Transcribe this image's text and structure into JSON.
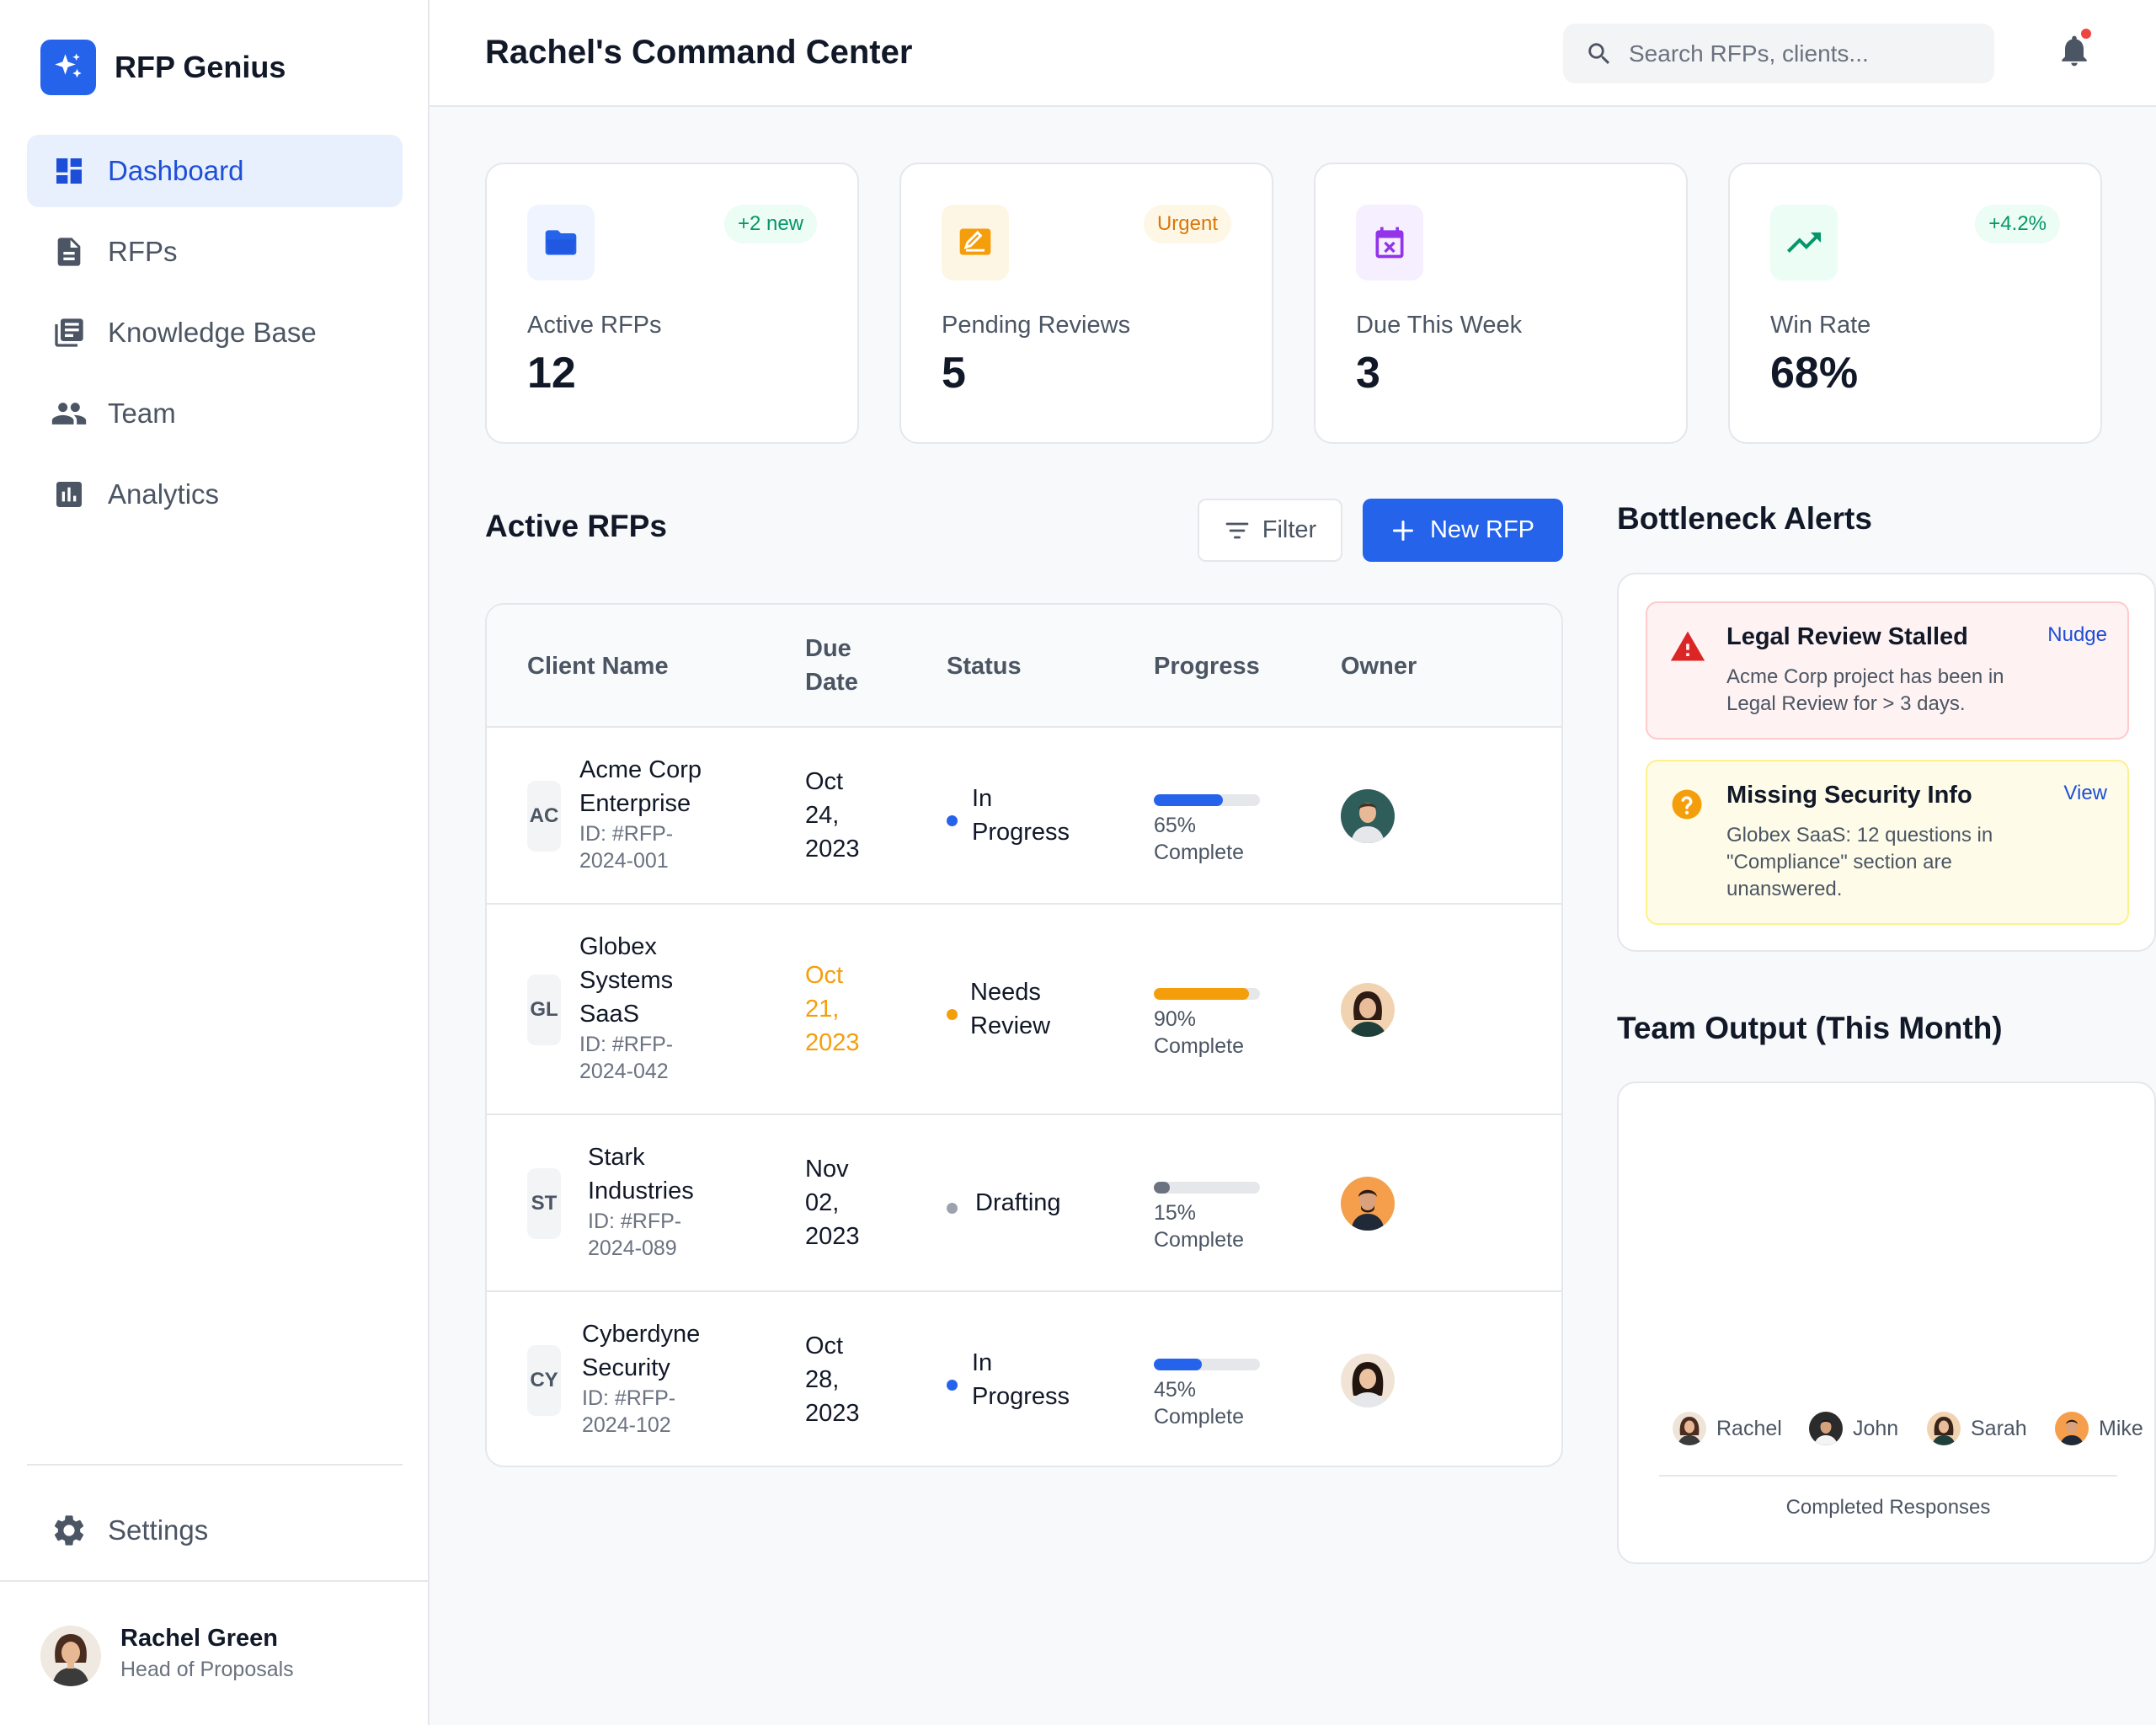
{
  "app": {
    "name": "RFP Genius"
  },
  "sidebar": {
    "items": [
      {
        "label": "Dashboard",
        "icon": "dashboard-icon",
        "active": true
      },
      {
        "label": "RFPs",
        "icon": "document-icon"
      },
      {
        "label": "Knowledge Base",
        "icon": "library-icon"
      },
      {
        "label": "Team",
        "icon": "people-icon"
      },
      {
        "label": "Analytics",
        "icon": "analytics-icon"
      }
    ],
    "settings_label": "Settings",
    "user": {
      "name": "Rachel Green",
      "role": "Head of Proposals"
    }
  },
  "header": {
    "title": "Rachel's Command Center",
    "search_placeholder": "Search RFPs, clients..."
  },
  "stats": [
    {
      "label": "Active RFPs",
      "value": "12",
      "badge": "+2 new",
      "icon": "folder-icon",
      "color": "#2563eb",
      "badge_color": "#059669"
    },
    {
      "label": "Pending Reviews",
      "value": "5",
      "badge": "Urgent",
      "icon": "edit-icon",
      "color": "#f59e0b",
      "badge_color": "#d97706"
    },
    {
      "label": "Due This Week",
      "value": "3",
      "badge": "",
      "icon": "calendar-icon",
      "color": "#9333ea"
    },
    {
      "label": "Win Rate",
      "value": "68%",
      "badge": "+4.2%",
      "icon": "trending-up-icon",
      "color": "#059669",
      "badge_color": "#059669"
    }
  ],
  "rfps": {
    "title": "Active RFPs",
    "filter_label": "Filter",
    "new_label": "New RFP",
    "columns": {
      "client": "Client Name",
      "due": [
        "Due",
        "Date"
      ],
      "status": "Status",
      "progress": "Progress",
      "owner": "Owner"
    },
    "rows": [
      {
        "initials": "AC",
        "name": [
          "Acme Corp",
          "Enterprise"
        ],
        "id": [
          "ID: #RFP-",
          "2024-001"
        ],
        "due": [
          "Oct",
          "24,",
          "2023"
        ],
        "due_urgent": false,
        "status": [
          "In",
          "Progress"
        ],
        "status_color": "#2563eb",
        "progress": 65,
        "progress_text": [
          "65%",
          "Complete"
        ],
        "progress_color": "#2563eb"
      },
      {
        "initials": "GL",
        "name": [
          "Globex",
          "Systems",
          "SaaS"
        ],
        "id": [
          "ID: #RFP-",
          "2024-042"
        ],
        "due": [
          "Oct",
          "21,",
          "2023"
        ],
        "due_urgent": true,
        "status": [
          "Needs",
          "Review"
        ],
        "status_color": "#f59e0b",
        "progress": 90,
        "progress_text": [
          "90%",
          "Complete"
        ],
        "progress_color": "#f59e0b"
      },
      {
        "initials": "ST",
        "name": [
          "Stark",
          "Industries"
        ],
        "id": [
          "ID: #RFP-",
          "2024-089"
        ],
        "due": [
          "Nov",
          "02,",
          "2023"
        ],
        "due_urgent": false,
        "status": [
          "Drafting"
        ],
        "status_color": "#9ca3af",
        "progress": 15,
        "progress_text": [
          "15%",
          "Complete"
        ],
        "progress_color": "#6b7280"
      },
      {
        "initials": "CY",
        "name": [
          "Cyberdyne",
          "Security"
        ],
        "id": [
          "ID: #RFP-",
          "2024-102"
        ],
        "due": [
          "Oct",
          "28,",
          "2023"
        ],
        "due_urgent": false,
        "status": [
          "In",
          "Progress"
        ],
        "status_color": "#2563eb",
        "progress": 45,
        "progress_text": [
          "45%",
          "Complete"
        ],
        "progress_color": "#2563eb"
      }
    ]
  },
  "alerts": {
    "title": "Bottleneck Alerts",
    "items": [
      {
        "title": "Legal Review Stalled",
        "desc": [
          "Acme Corp project has been in",
          "Legal Review for > 3 days."
        ],
        "action": "Nudge",
        "icon": "warning-icon",
        "color": "#dc2626"
      },
      {
        "title": "Missing Security Info",
        "desc": [
          "Globex SaaS: 12 questions in",
          "\"Compliance\" section are",
          "unanswered."
        ],
        "action": "View",
        "icon": "question-icon",
        "color": "#f59e0b"
      }
    ]
  },
  "team": {
    "title": "Team Output (This Month)",
    "members": [
      "Rachel",
      "John",
      "Sarah",
      "Mike"
    ],
    "axis_label": "Completed Responses"
  }
}
